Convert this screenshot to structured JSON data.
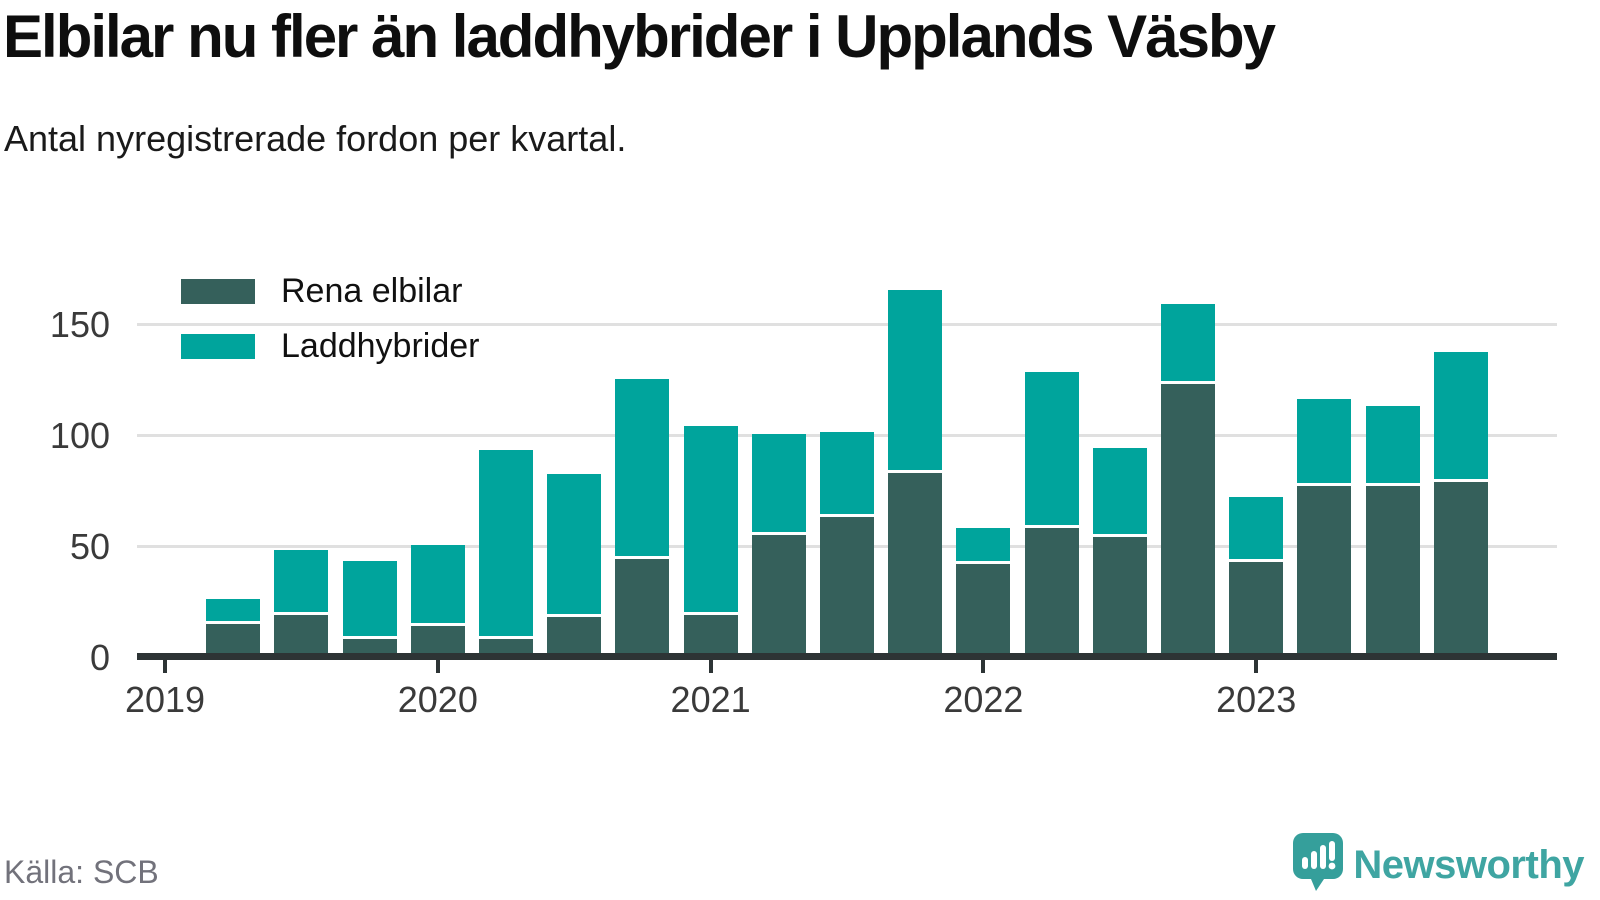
{
  "title": "Elbilar nu fler än laddhybrider i Upplands Väsby",
  "subtitle": "Antal nyregistrerade fordon per kvartal.",
  "source_note": "Källa: SCB",
  "branding": {
    "name": "Newsworthy",
    "icon": "newsworthy-speech-bubble-chart-icon"
  },
  "colors": {
    "rena_elbilar": "#35605b",
    "laddhybrider": "#00a49c",
    "gridline": "#e0e0e0",
    "axis": "#2d3435",
    "tick_label": "#3a3a3a",
    "brand_teal": "#3fa5a2"
  },
  "legend": {
    "items": [
      {
        "label": "Rena elbilar",
        "color": "#35605b"
      },
      {
        "label": "Laddhybrider",
        "color": "#00a49c"
      }
    ]
  },
  "chart_data": {
    "type": "bar",
    "stacked": true,
    "title": "Elbilar nu fler än laddhybrider i Upplands Väsby",
    "subtitle": "Antal nyregistrerade fordon per kvartal.",
    "categories": [
      "2019 Q1",
      "2019 Q2",
      "2019 Q3",
      "2019 Q4",
      "2020 Q1",
      "2020 Q2",
      "2020 Q3",
      "2020 Q4",
      "2021 Q1",
      "2021 Q2",
      "2021 Q3",
      "2021 Q4",
      "2022 Q1",
      "2022 Q2",
      "2022 Q3",
      "2022 Q4",
      "2023 Q1",
      "2023 Q2",
      "2023 Q3",
      "2023 Q4"
    ],
    "series": [
      {
        "name": "Rena elbilar",
        "color": "#35605b",
        "values": [
          0,
          15,
          19,
          8,
          14,
          8,
          18,
          44,
          19,
          55,
          63,
          83,
          42,
          58,
          54,
          123,
          43,
          77,
          77,
          79
        ]
      },
      {
        "name": "Laddhybrider",
        "color": "#00a49c",
        "values": [
          0,
          10,
          28,
          34,
          35,
          84,
          63,
          80,
          84,
          44,
          37,
          81,
          15,
          69,
          39,
          35,
          28,
          38,
          35,
          57
        ]
      }
    ],
    "x_tick_labels": [
      "2019",
      "2020",
      "2021",
      "2022",
      "2023"
    ],
    "y_tick_labels": [
      "0",
      "50",
      "100",
      "150"
    ],
    "ylim": [
      0,
      170
    ],
    "grid": "horizontal",
    "legend_position": "top-left-inside"
  }
}
